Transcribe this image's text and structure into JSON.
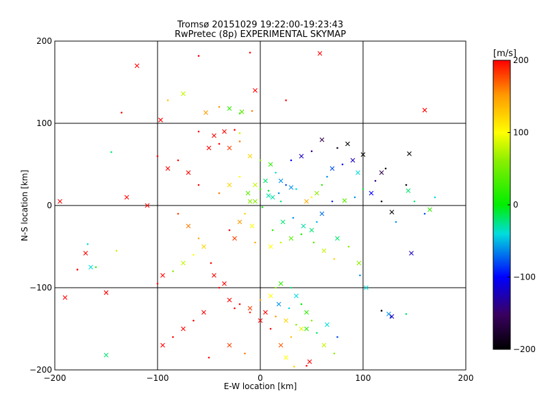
{
  "chart_data": {
    "type": "scatter",
    "title": "Tromsø 20151029 19:22:00-19:23:43",
    "subtitle": "RwPretec (8p) EXPERIMENTAL SKYMAP",
    "xlabel": "E-W location [km]",
    "ylabel": "N-S location [km]",
    "xlim": [
      -200,
      200
    ],
    "ylim": [
      -200,
      200
    ],
    "x_ticks": [
      -200,
      -100,
      0,
      100,
      200
    ],
    "y_ticks": [
      -200,
      -100,
      0,
      100,
      200
    ],
    "x_tick_labels": [
      "−200",
      "−100",
      "0",
      "100",
      "200"
    ],
    "y_tick_labels": [
      "−200",
      "−100",
      "0",
      "100",
      "200"
    ],
    "grid": true,
    "colorbar": {
      "label": "[m/s]",
      "range": [
        -200,
        200
      ],
      "ticks": [
        200,
        100,
        0,
        -100,
        -200
      ],
      "tick_labels": [
        "200",
        "100",
        "0",
        "−100",
        "−200"
      ],
      "colormap": "rainbow (black → purple → blue → cyan → green → yellow → red)"
    },
    "markers": "small dots and x crosses",
    "points": [
      [
        58,
        185,
        200
      ],
      [
        -135,
        113,
        200
      ],
      [
        -53,
        113,
        150
      ],
      [
        -40,
        120,
        150
      ],
      [
        -30,
        118,
        20
      ],
      [
        -20,
        112,
        20
      ],
      [
        -18,
        114,
        40
      ],
      [
        -8,
        115,
        160
      ],
      [
        -45,
        85,
        200
      ],
      [
        -60,
        90,
        200
      ],
      [
        -35,
        90,
        200
      ],
      [
        -25,
        92,
        200
      ],
      [
        -50,
        70,
        200
      ],
      [
        -40,
        75,
        200
      ],
      [
        -30,
        70,
        180
      ],
      [
        -20,
        78,
        160
      ],
      [
        -10,
        60,
        120
      ],
      [
        0,
        55,
        60
      ],
      [
        10,
        50,
        20
      ],
      [
        15,
        40,
        -40
      ],
      [
        20,
        30,
        -60
      ],
      [
        25,
        25,
        -80
      ],
      [
        30,
        22,
        -60
      ],
      [
        35,
        20,
        -40
      ],
      [
        5,
        30,
        -20
      ],
      [
        0,
        20,
        20
      ],
      [
        -5,
        25,
        80
      ],
      [
        8,
        18,
        -10
      ],
      [
        12,
        10,
        -30
      ],
      [
        20,
        5,
        -20
      ],
      [
        -10,
        5,
        60
      ],
      [
        -15,
        -10,
        120
      ],
      [
        -20,
        -20,
        150
      ],
      [
        -30,
        -30,
        200
      ],
      [
        -25,
        -40,
        180
      ],
      [
        -5,
        -45,
        140
      ],
      [
        10,
        -50,
        100
      ],
      [
        20,
        -45,
        80
      ],
      [
        30,
        -40,
        40
      ],
      [
        40,
        -35,
        10
      ],
      [
        50,
        -30,
        -20
      ],
      [
        55,
        -20,
        -50
      ],
      [
        60,
        -10,
        -70
      ],
      [
        70,
        5,
        -90
      ],
      [
        -45,
        -85,
        200
      ],
      [
        -48,
        -70,
        200
      ],
      [
        -35,
        -95,
        200
      ],
      [
        -20,
        -120,
        200
      ],
      [
        -10,
        -125,
        180
      ],
      [
        0,
        -115,
        140
      ],
      [
        10,
        -110,
        100
      ],
      [
        15,
        -100,
        60
      ],
      [
        20,
        -95,
        20
      ],
      [
        30,
        -100,
        -20
      ],
      [
        35,
        -110,
        -40
      ],
      [
        40,
        -120,
        0
      ],
      [
        45,
        -130,
        20
      ],
      [
        50,
        -140,
        60
      ],
      [
        40,
        -150,
        90
      ],
      [
        30,
        -160,
        130
      ],
      [
        20,
        -170,
        170
      ],
      [
        10,
        -150,
        200
      ],
      [
        0,
        -140,
        200
      ],
      [
        -10,
        -130,
        190
      ],
      [
        48,
        -190,
        200
      ],
      [
        45,
        -195,
        200
      ],
      [
        62,
        -170,
        80
      ],
      [
        72,
        -180,
        60
      ],
      [
        -190,
        -112,
        200
      ],
      [
        -178,
        -78,
        200
      ],
      [
        -170,
        -58,
        200
      ],
      [
        -168,
        -47,
        -40
      ],
      [
        -165,
        -75,
        -40
      ],
      [
        -160,
        -75,
        20
      ],
      [
        -150,
        -106,
        200
      ],
      [
        -140,
        -55,
        80
      ],
      [
        -130,
        10,
        200
      ],
      [
        -145,
        65,
        -20
      ],
      [
        -195,
        5,
        200
      ],
      [
        -100,
        -95,
        200
      ],
      [
        -97,
        104,
        200
      ],
      [
        -90,
        128,
        130
      ],
      [
        -75,
        136,
        80
      ],
      [
        -20,
        88,
        80
      ],
      [
        100,
        62,
        -200
      ],
      [
        118,
        5,
        -200
      ],
      [
        128,
        -8,
        -200
      ],
      [
        132,
        -20,
        -60
      ],
      [
        145,
        63,
        -200
      ],
      [
        142,
        25,
        -200
      ],
      [
        144,
        18,
        -20
      ],
      [
        150,
        5,
        -20
      ],
      [
        160,
        116,
        200
      ],
      [
        170,
        10,
        -40
      ],
      [
        165,
        -5,
        20
      ],
      [
        160,
        -10,
        -80
      ],
      [
        147,
        -58,
        -120
      ],
      [
        142,
        -132,
        -20
      ],
      [
        125,
        -132,
        -60
      ],
      [
        127,
        -136,
        -80
      ],
      [
        128,
        -135,
        -120
      ],
      [
        118,
        -128,
        -200
      ],
      [
        103,
        -100,
        -40
      ],
      [
        97,
        -85,
        -60
      ],
      [
        96,
        -70,
        60
      ],
      [
        86,
        -50,
        60
      ],
      [
        75,
        -40,
        -20
      ],
      [
        92,
        10,
        -60
      ],
      [
        82,
        6,
        40
      ],
      [
        100,
        20,
        -10
      ],
      [
        108,
        15,
        -100
      ],
      [
        112,
        30,
        -140
      ],
      [
        118,
        40,
        -160
      ],
      [
        122,
        45,
        -200
      ],
      [
        90,
        55,
        -120
      ],
      [
        80,
        50,
        -100
      ],
      [
        70,
        45,
        -80
      ],
      [
        65,
        35,
        -60
      ],
      [
        95,
        40,
        -40
      ],
      [
        60,
        25,
        20
      ],
      [
        55,
        15,
        60
      ],
      [
        50,
        10,
        100
      ],
      [
        45,
        5,
        140
      ],
      [
        -60,
        25,
        200
      ],
      [
        -70,
        40,
        200
      ],
      [
        -80,
        55,
        200
      ],
      [
        -90,
        45,
        200
      ],
      [
        -100,
        60,
        200
      ],
      [
        -110,
        0,
        200
      ],
      [
        -80,
        -10,
        180
      ],
      [
        -70,
        -25,
        160
      ],
      [
        -60,
        -40,
        140
      ],
      [
        -55,
        -50,
        120
      ],
      [
        -65,
        -60,
        100
      ],
      [
        -75,
        -70,
        80
      ],
      [
        -85,
        -80,
        60
      ],
      [
        -95,
        -85,
        200
      ],
      [
        -40,
        -100,
        200
      ],
      [
        -30,
        -115,
        200
      ],
      [
        -25,
        -125,
        200
      ],
      [
        5,
        -130,
        200
      ],
      [
        15,
        -135,
        150
      ],
      [
        25,
        -140,
        120
      ],
      [
        35,
        -145,
        60
      ],
      [
        45,
        -150,
        20
      ],
      [
        55,
        -155,
        -20
      ],
      [
        65,
        -145,
        -40
      ],
      [
        75,
        -160,
        -80
      ],
      [
        -55,
        -130,
        200
      ],
      [
        -65,
        -140,
        200
      ],
      [
        -75,
        -150,
        200
      ],
      [
        -85,
        -160,
        200
      ],
      [
        -95,
        -170,
        200
      ],
      [
        -50,
        -185,
        200
      ],
      [
        -30,
        -170,
        180
      ],
      [
        -15,
        -180,
        160
      ],
      [
        25,
        -185,
        100
      ],
      [
        33,
        -196,
        120
      ],
      [
        18,
        -120,
        -60
      ],
      [
        28,
        -125,
        -40
      ],
      [
        -5,
        140,
        200
      ],
      [
        25,
        128,
        200
      ],
      [
        -120,
        170,
        200
      ],
      [
        -10,
        186,
        200
      ],
      [
        -150,
        -182,
        -20
      ],
      [
        -60,
        182,
        200
      ],
      [
        60,
        80,
        -160
      ],
      [
        75,
        70,
        -180
      ],
      [
        85,
        75,
        -200
      ],
      [
        50,
        66,
        -140
      ],
      [
        40,
        60,
        -120
      ],
      [
        30,
        55,
        -100
      ],
      [
        -5,
        5,
        60
      ],
      [
        2,
        -2,
        0
      ],
      [
        8,
        12,
        -30
      ],
      [
        18,
        15,
        -60
      ],
      [
        -12,
        15,
        40
      ],
      [
        -20,
        35,
        100
      ],
      [
        -30,
        25,
        120
      ],
      [
        -40,
        15,
        160
      ],
      [
        -8,
        -25,
        100
      ],
      [
        12,
        -30,
        20
      ],
      [
        22,
        -20,
        -20
      ],
      [
        32,
        -15,
        -60
      ],
      [
        42,
        -25,
        -30
      ],
      [
        52,
        -45,
        40
      ],
      [
        62,
        -55,
        80
      ],
      [
        72,
        -65,
        120
      ]
    ]
  }
}
